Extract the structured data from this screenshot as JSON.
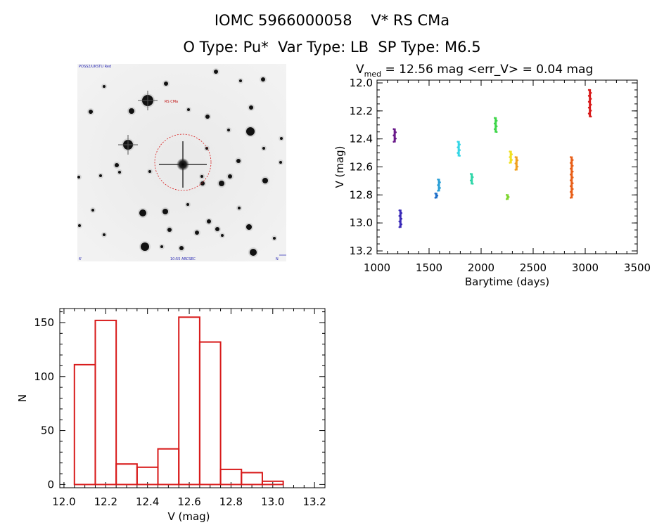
{
  "header": {
    "line1": "IOMC 5966000058    V* RS CMa",
    "line2": "O Type: Pu*  Var Type: LB  SP Type: M6.5"
  },
  "stamp": {
    "label": "RS CMa",
    "top_left": "POSS2/UKSTU Red",
    "bottom_left": "6'",
    "bottom_center": "10:55 ARCSEC",
    "bottom_right": "N",
    "top_right": "E"
  },
  "chart_data": [
    {
      "type": "scatter",
      "title": "V_med = 12.56 mag <err_V> = 0.04 mag",
      "title_parts": {
        "prefix": "V",
        "sub": "med",
        "rest": " = 12.56 mag <err_V> = 0.04 mag"
      },
      "xlabel": "Barytime (days)",
      "ylabel": "V (mag)",
      "xlim": [
        1000,
        3500
      ],
      "ylim": [
        13.22,
        11.98
      ],
      "y_inverted": true,
      "xticks": [
        1000,
        1500,
        2000,
        2500,
        3000,
        3500
      ],
      "yticks": [
        12.0,
        12.2,
        12.4,
        12.6,
        12.8,
        13.0,
        13.2
      ],
      "ytick_labels": [
        "12.0",
        "12.2",
        "12.4",
        "12.6",
        "12.8",
        "13.0",
        "13.2"
      ],
      "groups": [
        {
          "x": 1170,
          "y_min": 12.33,
          "y_max": 12.42,
          "color": "#6a1a8a"
        },
        {
          "x": 1225,
          "y_min": 12.91,
          "y_max": 13.03,
          "color": "#3b2bb8"
        },
        {
          "x": 1570,
          "y_min": 12.79,
          "y_max": 12.82,
          "color": "#1f6fc9"
        },
        {
          "x": 1595,
          "y_min": 12.69,
          "y_max": 12.77,
          "color": "#2a9fd6"
        },
        {
          "x": 1785,
          "y_min": 12.42,
          "y_max": 12.52,
          "color": "#36d6e6"
        },
        {
          "x": 1910,
          "y_min": 12.65,
          "y_max": 12.72,
          "color": "#2fd6a8"
        },
        {
          "x": 2140,
          "y_min": 12.25,
          "y_max": 12.35,
          "color": "#3fd64a"
        },
        {
          "x": 2255,
          "y_min": 12.8,
          "y_max": 12.83,
          "color": "#7ed62f"
        },
        {
          "x": 2285,
          "y_min": 12.49,
          "y_max": 12.57,
          "color": "#f0e020"
        },
        {
          "x": 2340,
          "y_min": 12.53,
          "y_max": 12.62,
          "color": "#f0a020"
        },
        {
          "x": 2870,
          "y_min": 12.53,
          "y_max": 12.82,
          "color": "#e8601a"
        },
        {
          "x": 3045,
          "y_min": 12.05,
          "y_max": 12.24,
          "color": "#d81a1a"
        }
      ]
    },
    {
      "type": "bar",
      "xlabel": "V (mag)",
      "ylabel": "N",
      "xlim": [
        11.98,
        13.25
      ],
      "ylim": [
        -3,
        163
      ],
      "xticks": [
        12.0,
        12.2,
        12.4,
        12.6,
        12.8,
        13.0,
        13.2
      ],
      "xtick_labels": [
        "12.0",
        "12.2",
        "12.4",
        "12.6",
        "12.8",
        "13.0",
        "13.2"
      ],
      "yticks": [
        0,
        50,
        100,
        150
      ],
      "bin_width": 0.1,
      "bins": [
        {
          "x0": 12.05,
          "count": 111
        },
        {
          "x0": 12.15,
          "count": 152
        },
        {
          "x0": 12.25,
          "count": 19
        },
        {
          "x0": 12.35,
          "count": 16
        },
        {
          "x0": 12.45,
          "count": 33
        },
        {
          "x0": 12.55,
          "count": 155
        },
        {
          "x0": 12.65,
          "count": 132
        },
        {
          "x0": 12.75,
          "count": 14
        },
        {
          "x0": 12.85,
          "count": 11
        },
        {
          "x0": 12.95,
          "count": 3
        }
      ],
      "bar_color": "#d81a1a"
    }
  ]
}
